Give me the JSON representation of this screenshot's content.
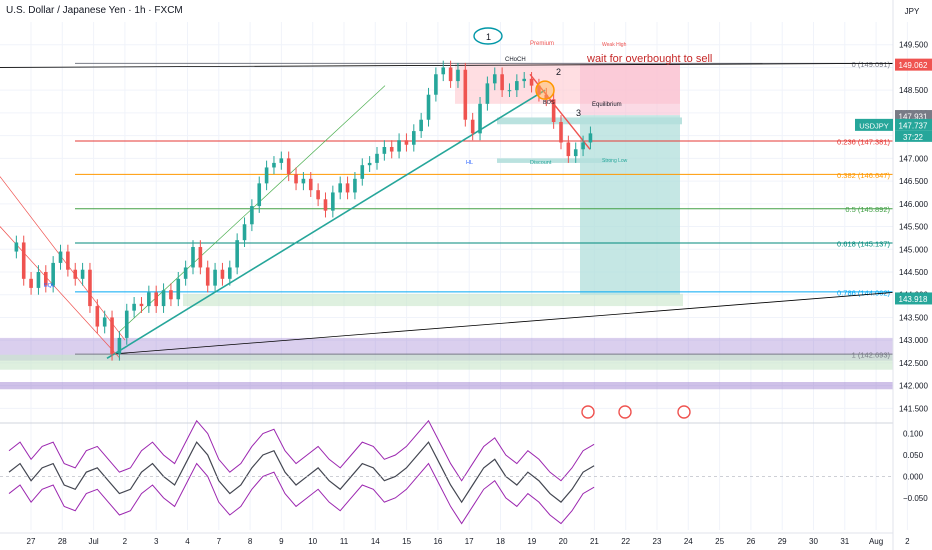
{
  "header": {
    "symbol_title": "U.S. Dollar / Japanese Yen · 1h · FXCM"
  },
  "currency": "JPY",
  "colors": {
    "up": "#26a69a",
    "down": "#ef5350",
    "grid": "#f0f3fa",
    "axis_text": "#131722",
    "fib_red": "#e53935",
    "fib_orange": "#ff9800",
    "fib_green": "#43a047",
    "fib_teal": "#00897b",
    "fib_blue": "#03a9f4",
    "fib_gray": "#787b86",
    "purple_zone": "#9575cd",
    "oscillator": "#434651",
    "band": "#9c27b0",
    "cloud_green": "#26d97a",
    "cloud_red": "#f23645",
    "channel_green": "#4caf50"
  },
  "chart_data": [
    {
      "type": "candlestick",
      "title": "U.S. Dollar / Japanese Yen · 1h · FXCM",
      "ylim": [
        141.2,
        150.0
      ],
      "y_ticks": [
        "149.500",
        "149.000",
        "148.500",
        "148.000",
        "147.500",
        "147.000",
        "146.500",
        "146.000",
        "145.500",
        "145.000",
        "144.500",
        "144.000",
        "143.500",
        "143.000",
        "142.500",
        "142.000",
        "141.500"
      ],
      "x_ticks": [
        "27",
        "28",
        "Jul",
        "2",
        "3",
        "4",
        "7",
        "8",
        "9",
        "10",
        "11",
        "14",
        "15",
        "16",
        "17",
        "18",
        "19",
        "20",
        "21",
        "22",
        "23",
        "24",
        "25",
        "26",
        "29",
        "30",
        "31",
        "Aug",
        "2",
        "5"
      ],
      "price_series": [
        [
          0,
          144.95
        ],
        [
          2,
          145.15
        ],
        [
          4,
          144.35
        ],
        [
          6,
          144.15
        ],
        [
          8,
          144.5
        ],
        [
          10,
          144.2
        ],
        [
          12,
          144.7
        ],
        [
          14,
          144.95
        ],
        [
          16,
          144.55
        ],
        [
          18,
          144.35
        ],
        [
          20,
          144.55
        ],
        [
          22,
          143.75
        ],
        [
          24,
          143.3
        ],
        [
          26,
          143.5
        ],
        [
          28,
          142.7
        ],
        [
          30,
          143.05
        ],
        [
          32,
          143.65
        ],
        [
          34,
          143.8
        ],
        [
          36,
          143.75
        ],
        [
          38,
          144.05
        ],
        [
          40,
          143.75
        ],
        [
          42,
          144.1
        ],
        [
          44,
          143.9
        ],
        [
          46,
          144.35
        ],
        [
          48,
          144.6
        ],
        [
          50,
          145.05
        ],
        [
          52,
          144.6
        ],
        [
          54,
          144.2
        ],
        [
          56,
          144.55
        ],
        [
          58,
          144.35
        ],
        [
          60,
          144.6
        ],
        [
          62,
          145.2
        ],
        [
          64,
          145.55
        ],
        [
          66,
          145.95
        ],
        [
          68,
          146.45
        ],
        [
          70,
          146.8
        ],
        [
          72,
          146.9
        ],
        [
          74,
          147.0
        ],
        [
          76,
          146.65
        ],
        [
          78,
          146.45
        ],
        [
          80,
          146.55
        ],
        [
          82,
          146.3
        ],
        [
          84,
          146.1
        ],
        [
          86,
          145.85
        ],
        [
          88,
          146.25
        ],
        [
          90,
          146.45
        ],
        [
          92,
          146.25
        ],
        [
          94,
          146.55
        ],
        [
          96,
          146.85
        ],
        [
          98,
          146.9
        ],
        [
          100,
          147.1
        ],
        [
          102,
          147.25
        ],
        [
          104,
          147.15
        ],
        [
          106,
          147.4
        ],
        [
          108,
          147.3
        ],
        [
          110,
          147.6
        ],
        [
          112,
          147.85
        ],
        [
          114,
          148.4
        ],
        [
          116,
          148.85
        ],
        [
          118,
          149.0
        ],
        [
          120,
          148.7
        ],
        [
          122,
          148.95
        ],
        [
          124,
          147.85
        ],
        [
          126,
          147.55
        ],
        [
          128,
          148.2
        ],
        [
          130,
          148.65
        ],
        [
          132,
          148.85
        ],
        [
          134,
          148.5
        ],
        [
          136,
          148.5
        ],
        [
          138,
          148.7
        ],
        [
          140,
          148.75
        ],
        [
          142,
          148.6
        ],
        [
          144,
          148.4
        ],
        [
          146,
          148.3
        ],
        [
          148,
          147.8
        ],
        [
          150,
          147.35
        ],
        [
          152,
          147.05
        ],
        [
          154,
          147.2
        ],
        [
          156,
          147.35
        ],
        [
          158,
          147.55
        ]
      ],
      "fibonacci": [
        {
          "ratio": "0",
          "price": 149.091,
          "label": "0 (149.091)"
        },
        {
          "ratio": "0.236",
          "price": 147.381,
          "label": "0.236 (147.381)"
        },
        {
          "ratio": "0.382",
          "price": 146.647,
          "label": "0.382 (146.647)"
        },
        {
          "ratio": "0.5",
          "price": 145.892,
          "label": "0.5 (145.892)"
        },
        {
          "ratio": "0.618",
          "price": 145.137,
          "label": "0.618 (145.137)"
        },
        {
          "ratio": "0.786",
          "price": 144.062,
          "label": "0.786 (144.062)"
        },
        {
          "ratio": "1",
          "price": 142.693,
          "label": "1 (142.693)"
        }
      ],
      "price_badges": [
        {
          "text": "149.062",
          "price": 149.062,
          "color": "#ef5350"
        },
        {
          "text": "147.931",
          "price": 147.931,
          "color": "#787b86"
        },
        {
          "text": "147.737",
          "price": 147.737,
          "color": "#26a69a",
          "symbol": "USDJPY",
          "countdown": "37:22"
        },
        {
          "text": "143.918",
          "price": 143.918,
          "color": "#26a69a"
        }
      ],
      "annotations": {
        "note": "wait for overbought to sell",
        "wave_labels": [
          "1",
          "2",
          "3"
        ],
        "zone_labels": {
          "premium": "Premium",
          "weak_high": "Weak High",
          "choch": "CHoCH",
          "equilibrium": "Equilibrium",
          "discount": "Discount",
          "strong_low": "Strong Low",
          "eql": "EQL",
          "hl": "HL",
          "bos": "BOS"
        }
      }
    },
    {
      "type": "line",
      "title": "",
      "ylim": [
        -0.125,
        0.12
      ],
      "y_ticks": [
        "0.100",
        "0.050",
        "0.000",
        "−0.050"
      ],
      "series": [
        {
          "values": [
            [
              0,
              0.01
            ],
            [
              3,
              0.03
            ],
            [
              6,
              -0.01
            ],
            [
              9,
              0.02
            ],
            [
              12,
              0.03
            ],
            [
              15,
              -0.02
            ],
            [
              18,
              -0.03
            ],
            [
              21,
              0.01
            ],
            [
              24,
              0.02
            ],
            [
              27,
              -0.01
            ],
            [
              30,
              -0.04
            ],
            [
              33,
              -0.03
            ],
            [
              36,
              0.01
            ],
            [
              39,
              0.03
            ],
            [
              42,
              0.0
            ],
            [
              45,
              -0.02
            ],
            [
              48,
              0.03
            ],
            [
              51,
              0.08
            ],
            [
              54,
              0.05
            ],
            [
              57,
              -0.01
            ],
            [
              60,
              -0.04
            ],
            [
              63,
              -0.02
            ],
            [
              66,
              0.02
            ],
            [
              69,
              0.05
            ],
            [
              72,
              0.06
            ],
            [
              75,
              0.01
            ],
            [
              78,
              -0.02
            ],
            [
              81,
              0.0
            ],
            [
              84,
              0.02
            ],
            [
              87,
              -0.01
            ],
            [
              90,
              -0.03
            ],
            [
              93,
              0.0
            ],
            [
              96,
              0.03
            ],
            [
              99,
              0.02
            ],
            [
              102,
              -0.01
            ],
            [
              105,
              0.0
            ],
            [
              108,
              0.02
            ],
            [
              111,
              0.05
            ],
            [
              114,
              0.08
            ],
            [
              117,
              0.03
            ],
            [
              120,
              -0.02
            ],
            [
              123,
              -0.06
            ],
            [
              126,
              -0.02
            ],
            [
              129,
              0.02
            ],
            [
              132,
              0.04
            ],
            [
              135,
              0.0
            ],
            [
              138,
              -0.02
            ],
            [
              141,
              0.01
            ],
            [
              144,
              -0.01
            ],
            [
              147,
              -0.04
            ],
            [
              150,
              -0.06
            ],
            [
              153,
              -0.03
            ],
            [
              156,
              0.01
            ],
            [
              159,
              0.025
            ]
          ]
        }
      ]
    }
  ]
}
